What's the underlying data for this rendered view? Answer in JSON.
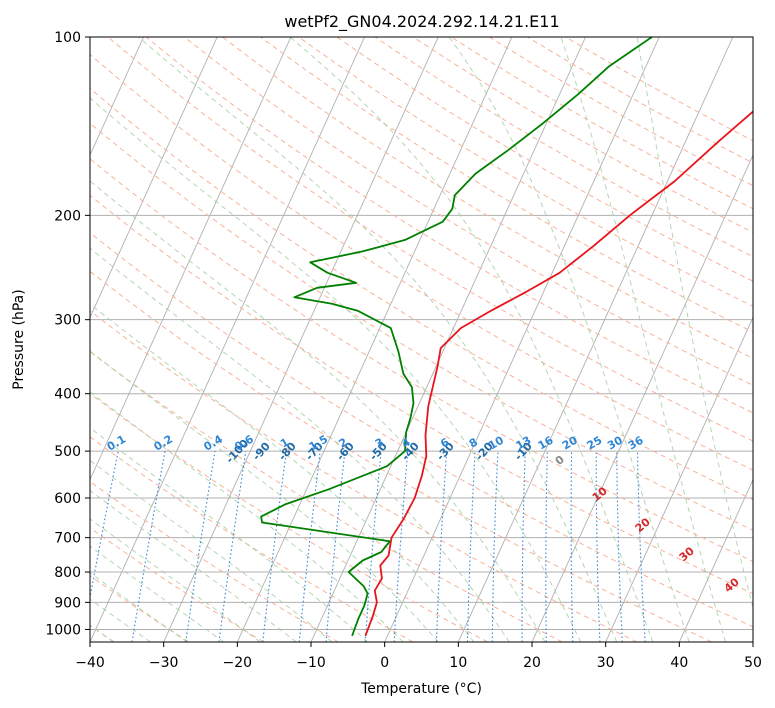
{
  "chart_data": {
    "type": "line",
    "title": "wetPf2_GN04.2024.292.14.21.E11",
    "xlabel": "Temperature (°C)",
    "ylabel": "Pressure (hPa)",
    "xlim": [
      -40,
      50
    ],
    "ylim": [
      1050,
      100
    ],
    "yscale": "log",
    "grid": true,
    "x_ticks": [
      -40,
      -30,
      -20,
      -10,
      0,
      10,
      20,
      30,
      40,
      50
    ],
    "x_tick_labels": [
      "−40",
      "−30",
      "−20",
      "−10",
      "0",
      "10",
      "20",
      "30",
      "40",
      "50"
    ],
    "y_ticks": [
      100,
      200,
      300,
      400,
      500,
      600,
      700,
      800,
      900,
      1000
    ],
    "y_tick_labels": [
      "100",
      "200",
      "300",
      "400",
      "500",
      "600",
      "700",
      "800",
      "900",
      "1000"
    ],
    "series": [
      {
        "color": "#e8141c",
        "points": [
          [
            -3,
            1025
          ],
          [
            -3.2,
            950
          ],
          [
            -3.5,
            900
          ],
          [
            -4.5,
            860
          ],
          [
            -4.3,
            820
          ],
          [
            -5.3,
            780
          ],
          [
            -4.8,
            750
          ],
          [
            -5.5,
            700
          ],
          [
            -5,
            650
          ],
          [
            -4.8,
            600
          ],
          [
            -5.2,
            550
          ],
          [
            -5.8,
            510
          ],
          [
            -7.2,
            470
          ],
          [
            -8.6,
            420
          ],
          [
            -9.8,
            360
          ],
          [
            -10.5,
            335
          ],
          [
            -9,
            310
          ],
          [
            -6,
            290
          ],
          [
            -2.5,
            270
          ],
          [
            1,
            250
          ],
          [
            4,
            225
          ],
          [
            7,
            200
          ],
          [
            11,
            175
          ],
          [
            14.5,
            150
          ],
          [
            18,
            130
          ],
          [
            22,
            115
          ],
          [
            25,
            100
          ]
        ]
      },
      {
        "color": "#008000",
        "points": [
          [
            -4.8,
            1025
          ],
          [
            -5,
            960
          ],
          [
            -5,
            910
          ],
          [
            -5.3,
            870
          ],
          [
            -6.3,
            845
          ],
          [
            -9.2,
            800
          ],
          [
            -8,
            765
          ],
          [
            -6,
            740
          ],
          [
            -5.5,
            710
          ],
          [
            -24,
            660
          ],
          [
            -24.5,
            645
          ],
          [
            -22,
            615
          ],
          [
            -17,
            580
          ],
          [
            -10.5,
            530
          ],
          [
            -9,
            500
          ],
          [
            -10,
            465
          ],
          [
            -10.3,
            440
          ],
          [
            -10.8,
            415
          ],
          [
            -12,
            390
          ],
          [
            -14,
            370
          ],
          [
            -16,
            340
          ],
          [
            -18.5,
            310
          ],
          [
            -24,
            290
          ],
          [
            -28,
            282
          ],
          [
            -33.5,
            275
          ],
          [
            -31,
            265
          ],
          [
            -26,
            260
          ],
          [
            -30.5,
            250
          ],
          [
            -33.5,
            240
          ],
          [
            -27,
            230
          ],
          [
            -22,
            220
          ],
          [
            -18,
            205
          ],
          [
            -17.5,
            195
          ],
          [
            -18,
            185
          ],
          [
            -16.5,
            170
          ],
          [
            -13.5,
            155
          ],
          [
            -10.5,
            140
          ],
          [
            -7.5,
            125
          ],
          [
            -5,
            112
          ],
          [
            -1,
            100
          ]
        ]
      }
    ],
    "dry_adiabat_labels": [
      "-100",
      "-90",
      "-80",
      "-70",
      "-60",
      "-50",
      "-40",
      "-30",
      "-20",
      "-10"
    ],
    "mixing_ratio_labels": [
      "0.1",
      "0.2",
      "0.4",
      "0.6",
      "1",
      "1.5",
      "2",
      "3",
      "4",
      "6",
      "8",
      "10",
      "13",
      "16",
      "20",
      "25",
      "30",
      "36"
    ],
    "moist_adiabat_labels": [
      "0",
      "10",
      "20",
      "30",
      "40"
    ]
  }
}
